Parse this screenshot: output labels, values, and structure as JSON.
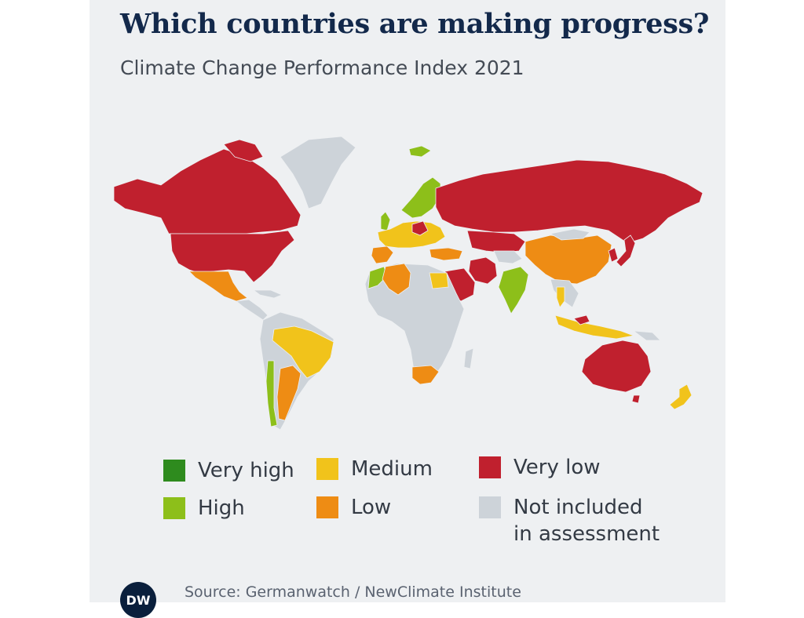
{
  "header": {
    "title": "Which countries are making progress?",
    "subtitle": "Climate Change Performance Index 2021"
  },
  "colors": {
    "very_high": "#2e8b1e",
    "high": "#8dbf1a",
    "medium": "#f1c31b",
    "low": "#ee8c14",
    "very_low": "#c0202e",
    "not_included": "#cdd3d9",
    "background": "#eef0f2"
  },
  "legend": {
    "items": [
      {
        "key": "very_high",
        "label": "Very high"
      },
      {
        "key": "medium",
        "label": "Medium"
      },
      {
        "key": "very_low",
        "label": "Very low"
      },
      {
        "key": "high",
        "label": "High"
      },
      {
        "key": "low",
        "label": "Low"
      },
      {
        "key": "not_included",
        "label": "Not included\nin assessment"
      }
    ]
  },
  "footer": {
    "logo": "DW",
    "source": "Source: Germanwatch / NewClimate Institute"
  }
}
